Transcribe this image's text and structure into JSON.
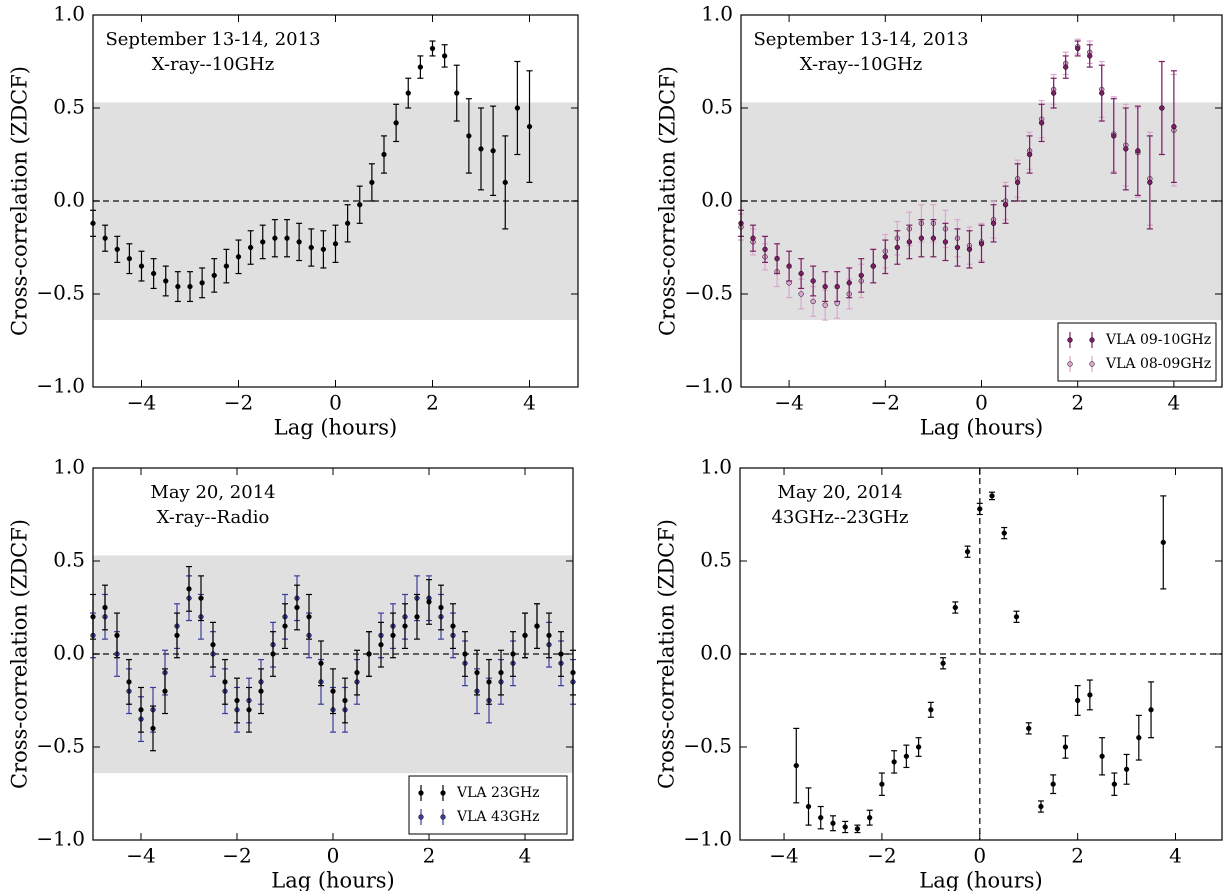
{
  "chart_data": [
    {
      "type": "errorbar",
      "annotations": [
        "September 13-14, 2013",
        "X-ray--10GHz"
      ],
      "xlabel": "Lag (hours)",
      "ylabel": "Cross-correlation (ZDCF)",
      "xlim": [
        -5,
        5
      ],
      "ylim": [
        -1,
        1
      ],
      "xticks": [
        {
          "value": -4,
          "label": "−4"
        },
        {
          "value": -2,
          "label": "−2"
        },
        0,
        2,
        4
      ],
      "yticks": [
        {
          "value": -1,
          "label": "−1.0"
        },
        {
          "value": -0.5,
          "label": "−0.5"
        },
        {
          "value": 0,
          "label": "0.0"
        },
        {
          "value": 0.5,
          "label": "0.5"
        },
        {
          "value": 1,
          "label": "1.0"
        }
      ],
      "band": [
        -0.64,
        0.53
      ],
      "hlines": [
        0
      ],
      "x": [
        -5,
        -4.75,
        -4.5,
        -4.25,
        -4,
        -3.75,
        -3.5,
        -3.25,
        -3,
        -2.75,
        -2.5,
        -2.25,
        -2,
        -1.75,
        -1.5,
        -1.25,
        -1,
        -0.75,
        -0.5,
        -0.25,
        0,
        0.25,
        0.5,
        0.75,
        1,
        1.25,
        1.5,
        1.75,
        2,
        2.25,
        2.5,
        2.75,
        3,
        3.25,
        3.5,
        3.75,
        4
      ],
      "series": [
        {
          "color": "#000000",
          "values": [
            -0.12,
            -0.2,
            -0.26,
            -0.31,
            -0.35,
            -0.39,
            -0.43,
            -0.46,
            -0.46,
            -0.44,
            -0.4,
            -0.35,
            -0.3,
            -0.25,
            -0.22,
            -0.2,
            -0.2,
            -0.22,
            -0.25,
            -0.26,
            -0.23,
            -0.12,
            -0.02,
            0.1,
            0.25,
            0.42,
            0.58,
            0.72,
            0.82,
            0.78,
            0.58,
            0.35,
            0.28,
            0.27,
            0.1,
            0.5,
            0.4
          ],
          "errors": [
            0.07,
            0.07,
            0.07,
            0.08,
            0.08,
            0.08,
            0.08,
            0.08,
            0.08,
            0.08,
            0.09,
            0.09,
            0.09,
            0.09,
            0.09,
            0.1,
            0.1,
            0.1,
            0.1,
            0.1,
            0.1,
            0.1,
            0.1,
            0.1,
            0.1,
            0.1,
            0.08,
            0.06,
            0.04,
            0.06,
            0.15,
            0.2,
            0.22,
            0.24,
            0.25,
            0.25,
            0.3
          ]
        }
      ]
    },
    {
      "type": "errorbar",
      "annotations": [
        "September 13-14, 2013",
        "X-ray--10GHz"
      ],
      "xlabel": "Lag (hours)",
      "ylabel": "Cross-correlation (ZDCF)",
      "xlim": [
        -5,
        5
      ],
      "ylim": [
        -1,
        1
      ],
      "xticks": [
        {
          "value": -4,
          "label": "−4"
        },
        {
          "value": -2,
          "label": "−2"
        },
        0,
        2,
        4
      ],
      "yticks": [
        {
          "value": -1,
          "label": "−1.0"
        },
        {
          "value": -0.5,
          "label": "−0.5"
        },
        {
          "value": 0,
          "label": "0.0"
        },
        {
          "value": 0.5,
          "label": "0.5"
        },
        {
          "value": 1,
          "label": "1.0"
        }
      ],
      "band": [
        -0.64,
        0.53
      ],
      "hlines": [
        0
      ],
      "legend": "lower right",
      "x": [
        -5,
        -4.75,
        -4.5,
        -4.25,
        -4,
        -3.75,
        -3.5,
        -3.25,
        -3,
        -2.75,
        -2.5,
        -2.25,
        -2,
        -1.75,
        -1.5,
        -1.25,
        -1,
        -0.75,
        -0.5,
        -0.25,
        0,
        0.25,
        0.5,
        0.75,
        1,
        1.25,
        1.5,
        1.75,
        2,
        2.25,
        2.5,
        2.75,
        3,
        3.25,
        3.5,
        3.75,
        4
      ],
      "series": [
        {
          "name": "VLA 09-10GHz",
          "color": "#7a1f63",
          "values": [
            -0.12,
            -0.2,
            -0.26,
            -0.31,
            -0.35,
            -0.39,
            -0.43,
            -0.46,
            -0.46,
            -0.44,
            -0.4,
            -0.35,
            -0.3,
            -0.25,
            -0.22,
            -0.2,
            -0.2,
            -0.22,
            -0.25,
            -0.26,
            -0.23,
            -0.12,
            -0.02,
            0.1,
            0.25,
            0.42,
            0.58,
            0.72,
            0.82,
            0.78,
            0.58,
            0.35,
            0.28,
            0.27,
            0.1,
            0.5,
            0.4
          ],
          "errors": [
            0.07,
            0.07,
            0.07,
            0.08,
            0.08,
            0.08,
            0.08,
            0.08,
            0.08,
            0.08,
            0.09,
            0.09,
            0.09,
            0.09,
            0.09,
            0.1,
            0.1,
            0.1,
            0.1,
            0.1,
            0.1,
            0.1,
            0.1,
            0.1,
            0.1,
            0.1,
            0.08,
            0.06,
            0.04,
            0.06,
            0.15,
            0.2,
            0.22,
            0.24,
            0.25,
            0.25,
            0.3
          ]
        },
        {
          "name": "VLA 08-09GHz",
          "color": "#dca6cf",
          "values": [
            -0.14,
            -0.22,
            -0.3,
            -0.38,
            -0.44,
            -0.5,
            -0.54,
            -0.56,
            -0.55,
            -0.5,
            -0.43,
            -0.35,
            -0.27,
            -0.2,
            -0.15,
            -0.12,
            -0.12,
            -0.15,
            -0.2,
            -0.24,
            -0.22,
            -0.1,
            0.0,
            0.12,
            0.27,
            0.44,
            0.6,
            0.74,
            0.83,
            0.8,
            0.6,
            0.36,
            0.3,
            0.26,
            0.12,
            0.5,
            0.38
          ],
          "errors": [
            0.07,
            0.07,
            0.07,
            0.08,
            0.08,
            0.08,
            0.08,
            0.08,
            0.08,
            0.08,
            0.09,
            0.09,
            0.09,
            0.09,
            0.09,
            0.1,
            0.1,
            0.1,
            0.1,
            0.1,
            0.1,
            0.1,
            0.1,
            0.1,
            0.1,
            0.1,
            0.08,
            0.06,
            0.04,
            0.06,
            0.15,
            0.2,
            0.22,
            0.24,
            0.25,
            0.25,
            0.3
          ]
        }
      ]
    },
    {
      "type": "errorbar",
      "annotations": [
        "May 20, 2014",
        "X-ray--Radio"
      ],
      "xlabel": "Lag (hours)",
      "ylabel": "Cross-correlation (ZDCF)",
      "xlim": [
        -5,
        5
      ],
      "ylim": [
        -1,
        1
      ],
      "xticks": [
        {
          "value": -4,
          "label": "−4"
        },
        {
          "value": -2,
          "label": "−2"
        },
        0,
        2,
        4
      ],
      "yticks": [
        {
          "value": -1,
          "label": "−1.0"
        },
        {
          "value": -0.5,
          "label": "−0.5"
        },
        {
          "value": 0,
          "label": "0.0"
        },
        {
          "value": 0.5,
          "label": "0.5"
        },
        {
          "value": 1,
          "label": "1.0"
        }
      ],
      "band": [
        -0.64,
        0.53
      ],
      "hlines": [
        0
      ],
      "legend": "lower right",
      "x": [
        -5,
        -4.75,
        -4.5,
        -4.25,
        -4,
        -3.75,
        -3.5,
        -3.25,
        -3,
        -2.75,
        -2.5,
        -2.25,
        -2,
        -1.75,
        -1.5,
        -1.25,
        -1,
        -0.75,
        -0.5,
        -0.25,
        0,
        0.25,
        0.5,
        0.75,
        1,
        1.25,
        1.5,
        1.75,
        2,
        2.25,
        2.5,
        2.75,
        3,
        3.25,
        3.5,
        3.75,
        4,
        4.25,
        4.5,
        4.75,
        5
      ],
      "series": [
        {
          "name": "VLA 23GHz",
          "color": "#000000",
          "values": [
            0.2,
            0.25,
            0.1,
            -0.15,
            -0.3,
            -0.4,
            -0.2,
            0.1,
            0.35,
            0.3,
            0.05,
            -0.15,
            -0.25,
            -0.3,
            -0.2,
            0.0,
            0.15,
            0.25,
            0.2,
            -0.05,
            -0.2,
            -0.25,
            -0.1,
            0.0,
            0.05,
            0.1,
            0.15,
            0.2,
            0.28,
            0.25,
            0.15,
            0.0,
            -0.1,
            -0.15,
            -0.1,
            0.0,
            0.1,
            0.15,
            0.1,
            0.0,
            -0.1
          ],
          "errors": [
            0.12,
            0.12,
            0.12,
            0.12,
            0.12,
            0.12,
            0.12,
            0.12,
            0.12,
            0.12,
            0.12,
            0.12,
            0.12,
            0.12,
            0.12,
            0.12,
            0.12,
            0.12,
            0.12,
            0.12,
            0.12,
            0.12,
            0.12,
            0.12,
            0.12,
            0.12,
            0.12,
            0.12,
            0.12,
            0.12,
            0.12,
            0.12,
            0.12,
            0.12,
            0.12,
            0.12,
            0.12,
            0.12,
            0.12,
            0.12,
            0.12
          ]
        },
        {
          "name": "VLA 43GHz",
          "color": "#3c3c9c",
          "values": [
            0.1,
            0.2,
            0.0,
            -0.2,
            -0.35,
            -0.3,
            -0.1,
            0.15,
            0.3,
            0.2,
            0.0,
            -0.2,
            -0.3,
            -0.25,
            -0.15,
            0.05,
            0.2,
            0.3,
            0.1,
            -0.15,
            -0.3,
            -0.3,
            -0.15,
            0.0,
            0.1,
            0.15,
            0.2,
            0.3,
            0.3,
            0.2,
            0.1,
            -0.05,
            -0.2,
            -0.25,
            -0.15,
            -0.05,
            0.1,
            0.15,
            0.05,
            -0.05,
            -0.15
          ],
          "errors": [
            0.12,
            0.12,
            0.12,
            0.12,
            0.12,
            0.12,
            0.12,
            0.12,
            0.12,
            0.12,
            0.12,
            0.12,
            0.12,
            0.12,
            0.12,
            0.12,
            0.12,
            0.12,
            0.12,
            0.12,
            0.12,
            0.12,
            0.12,
            0.12,
            0.12,
            0.12,
            0.12,
            0.12,
            0.12,
            0.12,
            0.12,
            0.12,
            0.12,
            0.12,
            0.12,
            0.12,
            0.12,
            0.12,
            0.12,
            0.12,
            0.12
          ]
        }
      ]
    },
    {
      "type": "errorbar",
      "annotations": [
        "May 20, 2014",
        "43GHz--23GHz"
      ],
      "xlabel": "Lag (hours)",
      "ylabel": "Cross-correlation (ZDCF)",
      "xlim": [
        -4.9,
        4.95
      ],
      "ylim": [
        -1,
        1
      ],
      "xticks": [
        {
          "value": -4,
          "label": "−4"
        },
        {
          "value": -2,
          "label": "−2"
        },
        0,
        2,
        4
      ],
      "yticks": [
        {
          "value": -1,
          "label": "−1.0"
        },
        {
          "value": -0.5,
          "label": "−0.5"
        },
        {
          "value": 0,
          "label": "0.0"
        },
        {
          "value": 0.5,
          "label": "0.5"
        },
        {
          "value": 1,
          "label": "1.0"
        }
      ],
      "hlines": [
        0
      ],
      "vlines": [
        0
      ],
      "x": [
        -3.75,
        -3.5,
        -3.25,
        -3,
        -2.75,
        -2.5,
        -2.25,
        -2,
        -1.75,
        -1.5,
        -1.25,
        -1,
        -0.75,
        -0.5,
        -0.25,
        0,
        0.25,
        0.5,
        0.75,
        1,
        1.25,
        1.5,
        1.75,
        2,
        2.25,
        2.5,
        2.75,
        3,
        3.25,
        3.5,
        3.75
      ],
      "series": [
        {
          "color": "#000000",
          "values": [
            -0.6,
            -0.82,
            -0.88,
            -0.91,
            -0.93,
            -0.94,
            -0.88,
            -0.7,
            -0.58,
            -0.55,
            -0.5,
            -0.3,
            -0.05,
            0.25,
            0.55,
            0.78,
            0.85,
            0.65,
            0.2,
            -0.4,
            -0.82,
            -0.7,
            -0.5,
            -0.25,
            -0.22,
            -0.55,
            -0.7,
            -0.62,
            -0.45,
            -0.3,
            0.6
          ],
          "errors": [
            0.2,
            0.1,
            0.06,
            0.04,
            0.03,
            0.02,
            0.04,
            0.06,
            0.06,
            0.06,
            0.05,
            0.04,
            0.03,
            0.03,
            0.03,
            0.03,
            0.02,
            0.03,
            0.03,
            0.03,
            0.03,
            0.05,
            0.06,
            0.08,
            0.08,
            0.1,
            0.06,
            0.08,
            0.12,
            0.15,
            0.25
          ]
        }
      ]
    }
  ]
}
